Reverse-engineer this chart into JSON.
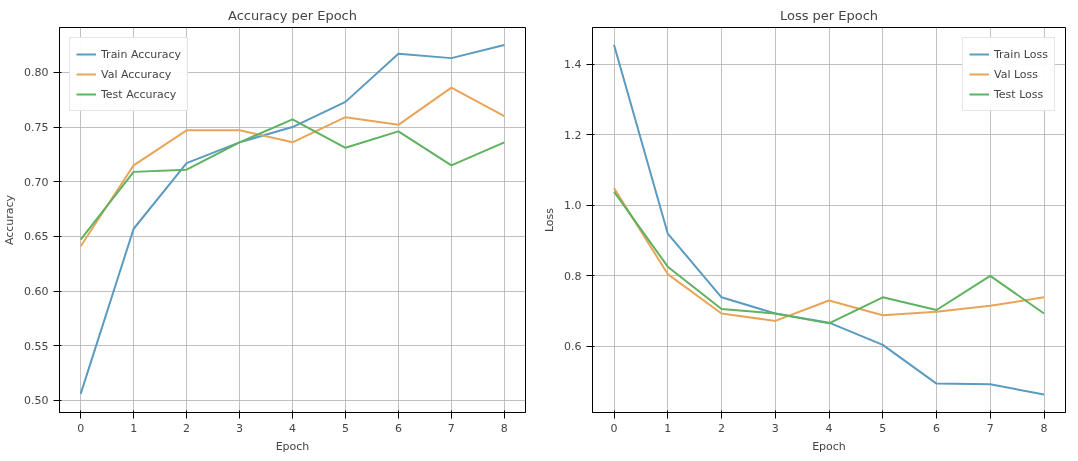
{
  "chart_data": [
    {
      "type": "line",
      "title": "Accuracy per Epoch",
      "xlabel": "Epoch",
      "ylabel": "Accuracy",
      "x": [
        0,
        1,
        2,
        3,
        4,
        5,
        6,
        7,
        8
      ],
      "xlim": [
        -0.4,
        8.4
      ],
      "xticks": [
        0,
        1,
        2,
        3,
        4,
        5,
        6,
        7,
        8
      ],
      "ylim": [
        0.489,
        0.841
      ],
      "yticks": [
        {
          "value": 0.5,
          "label": "0.50"
        },
        {
          "value": 0.55,
          "label": "0.55"
        },
        {
          "value": 0.6,
          "label": "0.60"
        },
        {
          "value": 0.65,
          "label": "0.65"
        },
        {
          "value": 0.7,
          "label": "0.70"
        },
        {
          "value": 0.75,
          "label": "0.75"
        },
        {
          "value": 0.8,
          "label": "0.80"
        }
      ],
      "grid": true,
      "legend": "top left",
      "series": [
        {
          "name": "Train Accuracy",
          "color": "#5b9bc0",
          "values": [
            0.506,
            0.657,
            0.717,
            0.736,
            0.75,
            0.773,
            0.817,
            0.813,
            0.825
          ]
        },
        {
          "name": "Val Accuracy",
          "color": "#e8a559",
          "values": [
            0.641,
            0.715,
            0.747,
            0.747,
            0.736,
            0.759,
            0.752,
            0.786,
            0.76
          ]
        },
        {
          "name": "Test Accuracy",
          "color": "#5fb25f",
          "values": [
            0.647,
            0.709,
            0.711,
            0.736,
            0.757,
            0.731,
            0.746,
            0.715,
            0.736
          ]
        }
      ]
    },
    {
      "type": "line",
      "title": "Loss per Epoch",
      "xlabel": "Epoch",
      "ylabel": "Loss",
      "x": [
        0,
        1,
        2,
        3,
        4,
        5,
        6,
        7,
        8
      ],
      "xlim": [
        -0.4,
        8.4
      ],
      "xticks": [
        0,
        1,
        2,
        3,
        4,
        5,
        6,
        7,
        8
      ],
      "ylim": [
        0.412,
        1.505
      ],
      "yticks": [
        0.6,
        0.8,
        {
          "value": 1.0,
          "label": "1.0"
        },
        1.2,
        1.4
      ],
      "grid": true,
      "legend": "top right",
      "series": [
        {
          "name": "Train Loss",
          "color": "#5b9bc0",
          "values": [
            1.456,
            0.92,
            0.739,
            0.693,
            0.667,
            0.604,
            0.494,
            0.492,
            0.463
          ]
        },
        {
          "name": "Val Loss",
          "color": "#e8a559",
          "values": [
            1.049,
            0.805,
            0.693,
            0.672,
            0.73,
            0.688,
            0.698,
            0.715,
            0.739
          ]
        },
        {
          "name": "Test Loss",
          "color": "#5fb25f",
          "values": [
            1.039,
            0.826,
            0.706,
            0.693,
            0.665,
            0.739,
            0.703,
            0.8,
            0.693
          ]
        }
      ]
    }
  ]
}
